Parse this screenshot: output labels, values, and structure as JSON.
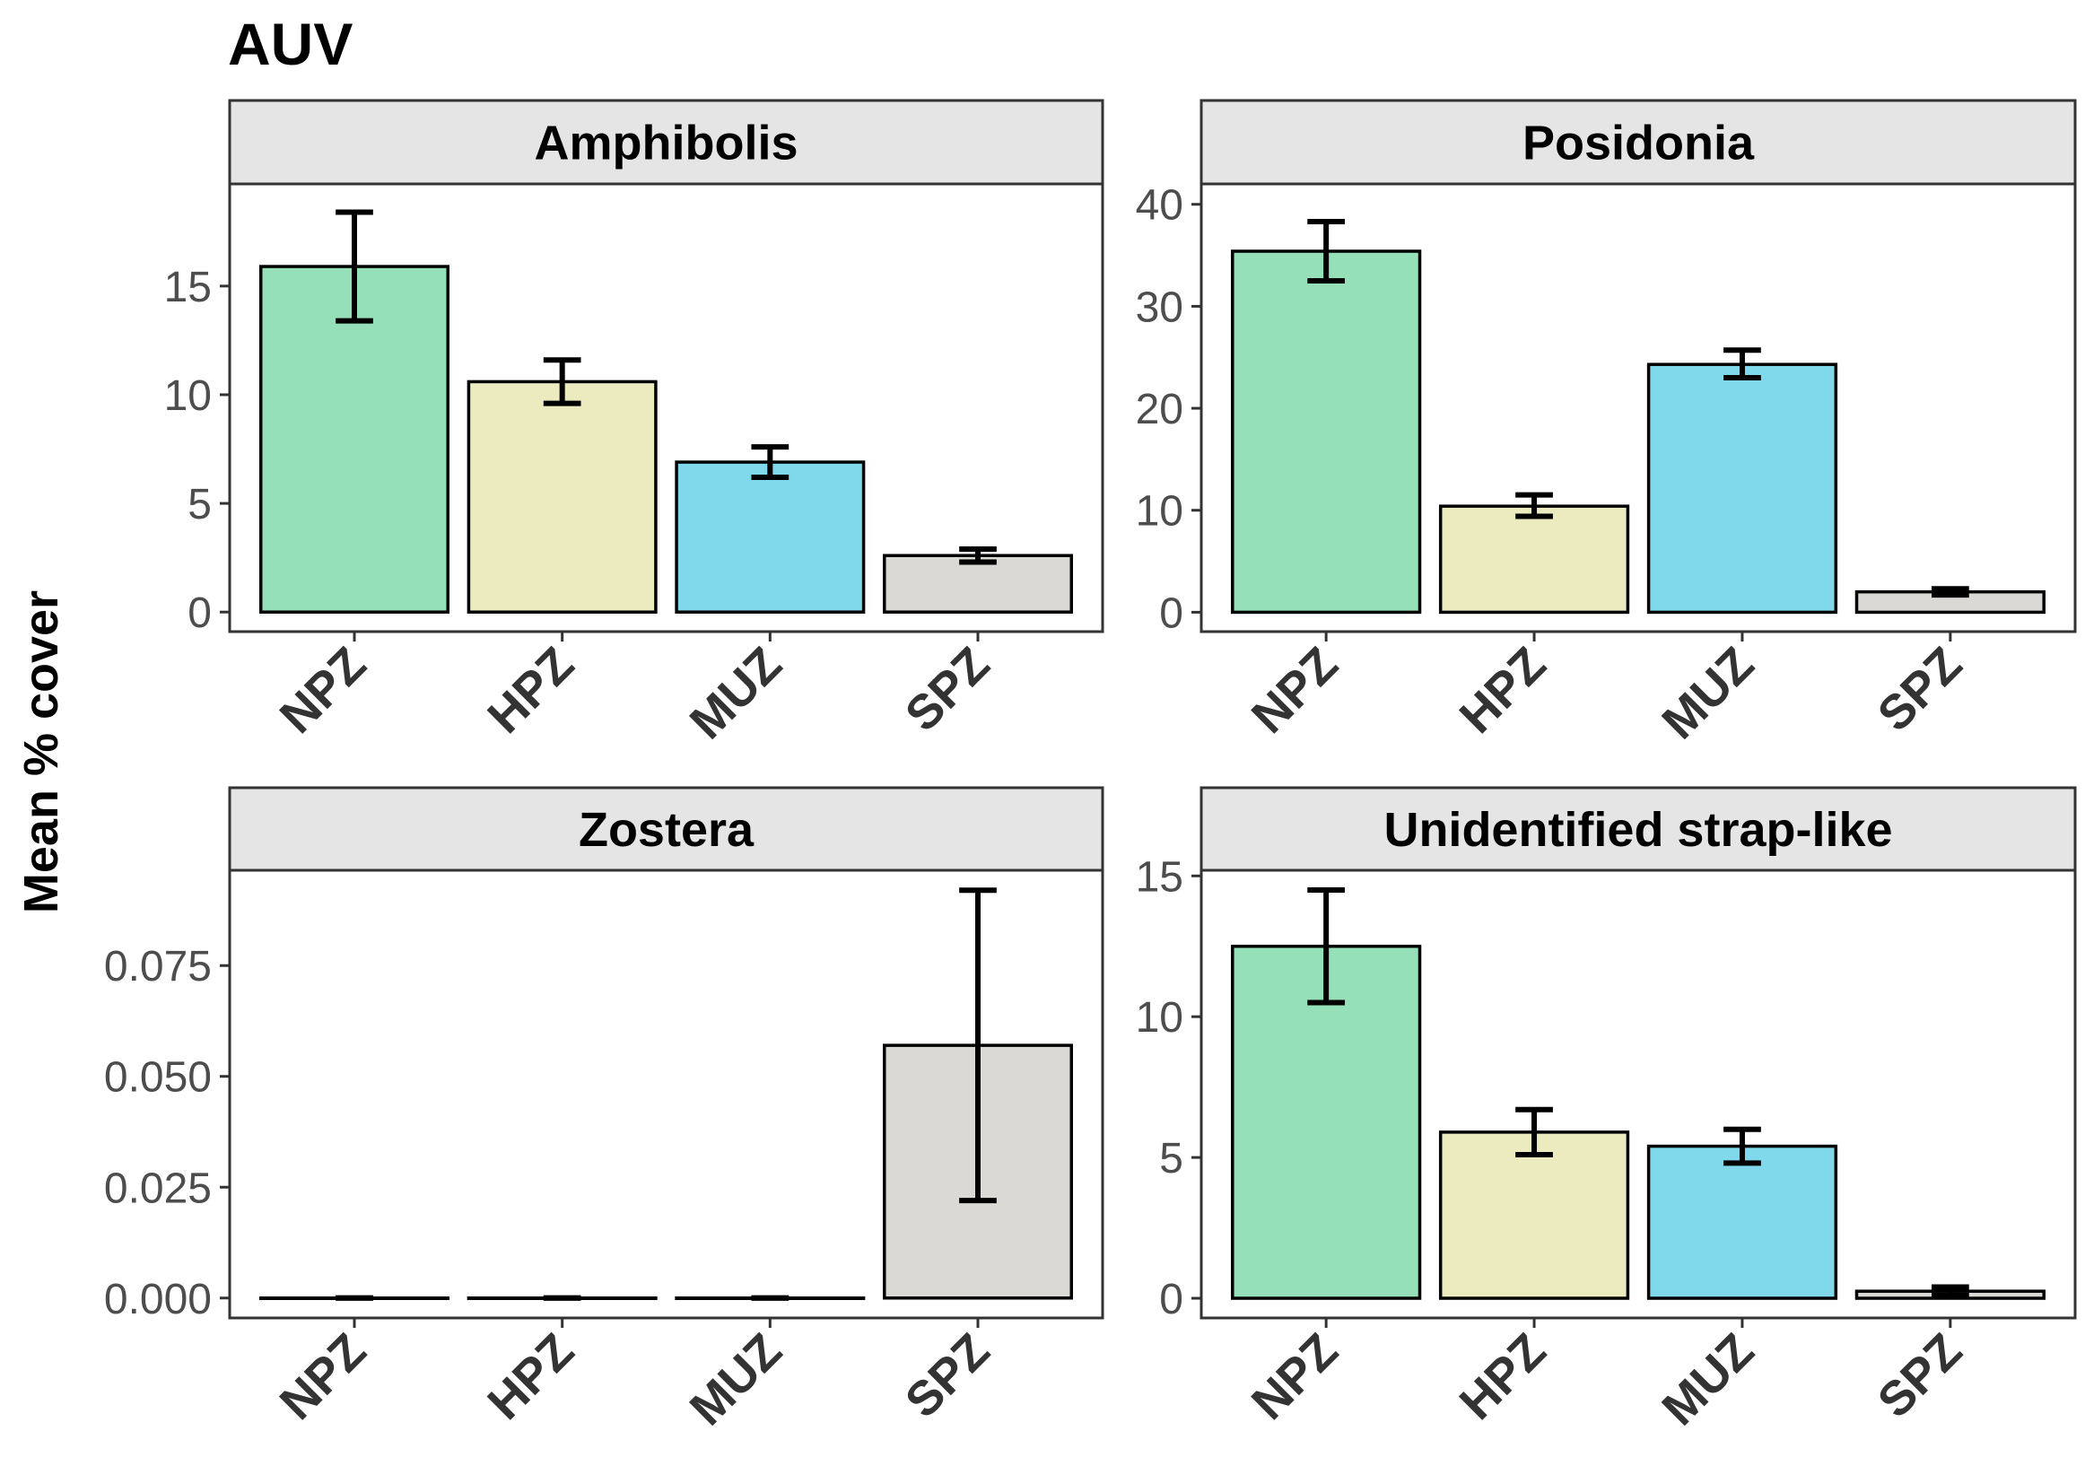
{
  "title": "AUV",
  "ylabel": "Mean % cover",
  "chart_data": {
    "type": "bar",
    "facets": [
      {
        "name": "Amphibolis",
        "categories": [
          "NPZ",
          "HPZ",
          "MUZ",
          "SPZ"
        ],
        "values": [
          15.9,
          10.6,
          6.9,
          2.6
        ],
        "error_low": [
          13.4,
          9.6,
          6.2,
          2.3
        ],
        "error_high": [
          18.4,
          11.6,
          7.6,
          2.9
        ],
        "ylim": [
          -0.9,
          19.7
        ],
        "yticks": [
          0,
          5,
          10,
          15
        ],
        "ytick_labels": [
          "0",
          "5",
          "10",
          "15"
        ]
      },
      {
        "name": "Posidonia",
        "categories": [
          "NPZ",
          "HPZ",
          "MUZ",
          "SPZ"
        ],
        "values": [
          35.4,
          10.4,
          24.3,
          2.0
        ],
        "error_low": [
          32.5,
          9.4,
          23.0,
          1.7
        ],
        "error_high": [
          38.3,
          11.5,
          25.7,
          2.3
        ],
        "ylim": [
          -1.9,
          42.0
        ],
        "yticks": [
          0,
          10,
          20,
          30,
          40
        ],
        "ytick_labels": [
          "0",
          "10",
          "20",
          "30",
          "40"
        ]
      },
      {
        "name": "Zostera",
        "categories": [
          "NPZ",
          "HPZ",
          "MUZ",
          "SPZ"
        ],
        "values": [
          0,
          0,
          0,
          0.057
        ],
        "error_low": [
          0,
          0,
          0,
          0.022
        ],
        "error_high": [
          0,
          0,
          0,
          0.092
        ],
        "ylim": [
          -0.0045,
          0.0965
        ],
        "yticks": [
          0,
          0.025,
          0.05,
          0.075
        ],
        "ytick_labels": [
          "0.000",
          "0.025",
          "0.050",
          "0.075"
        ]
      },
      {
        "name": "Unidentified strap-like",
        "categories": [
          "NPZ",
          "HPZ",
          "MUZ",
          "SPZ"
        ],
        "values": [
          12.5,
          5.9,
          5.4,
          0.25
        ],
        "error_low": [
          10.5,
          5.1,
          4.8,
          0.1
        ],
        "error_high": [
          14.5,
          6.7,
          6.0,
          0.4
        ],
        "ylim": [
          -0.7,
          15.2
        ],
        "yticks": [
          0,
          5,
          10,
          15
        ],
        "ytick_labels": [
          "0",
          "5",
          "10",
          "15"
        ]
      }
    ],
    "fill_colors": {
      "NPZ": "#95e0b8",
      "HPZ": "#ecebc0",
      "MUZ": "#80d9eb",
      "SPZ": "#dad9d4"
    },
    "grid": false,
    "legend": "none"
  }
}
